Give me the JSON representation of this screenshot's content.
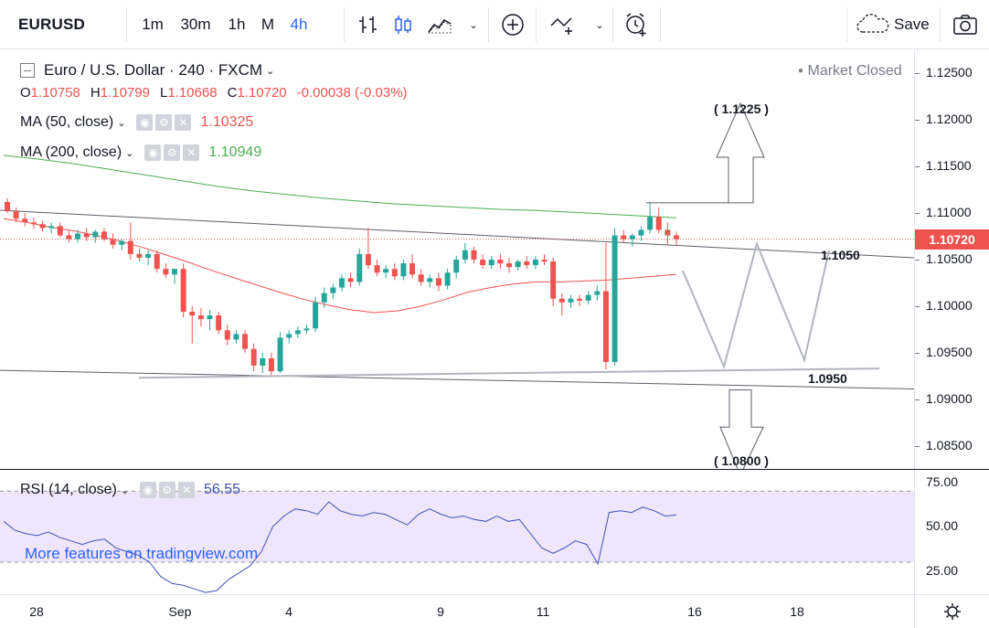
{
  "toolbar": {
    "symbol": "EURUSD",
    "intervals": [
      "1m",
      "30m",
      "1h",
      "M",
      "4h"
    ],
    "active_interval": "4h",
    "save_label": "Save",
    "icons": [
      "bar-style-icon",
      "candle-style-icon",
      "indicators-icon",
      "compare-add-icon",
      "drawing-line-icon",
      "alert-icon",
      "cloud-icon",
      "camera-icon"
    ]
  },
  "legend": {
    "title": "Euro / U.S. Dollar · 240 · FXCM",
    "open_key": "O",
    "open": "1.10758",
    "high_key": "H",
    "high": "1.10799",
    "low_key": "L",
    "low": "1.10668",
    "close_key": "C",
    "close": "1.10720",
    "change": "-0.00038 (-0.03%)",
    "ma50_label": "MA (50, close)",
    "ma50_value": "1.10325",
    "ma200_label": "MA (200, close)",
    "ma200_value": "1.10949",
    "market_status": "Market Closed"
  },
  "price_axis": {
    "labels": [
      "1.12500",
      "1.12000",
      "1.11500",
      "1.11000",
      "1.10500",
      "1.10000",
      "1.09500",
      "1.09000",
      "1.08500"
    ],
    "last_price": "1.10720"
  },
  "rsi": {
    "label": "RSI (14, close)",
    "value": "56.55",
    "axis_labels": [
      "75.00",
      "50.00",
      "25.00"
    ]
  },
  "time_axis": {
    "labels": [
      "28",
      "Sep",
      "4",
      "9",
      "11",
      "16",
      "18"
    ]
  },
  "annotations": {
    "target_up": "( 1.1225 )",
    "resistance": "1.1050",
    "support": "1.0950",
    "target_down": "( 1.0800 )"
  },
  "watermark": "More features on tradingview.com",
  "colors": {
    "bull": "#26a69a",
    "bear": "#ef5350",
    "ma50": "#ef5350",
    "ma200": "#4caf50",
    "rsi_line": "#3f51b5",
    "rsi_band": "#f0e6fb",
    "accent": "#2962ff"
  },
  "chart_data": {
    "type": "candlestick",
    "title": "Euro / U.S. Dollar · 240 · FXCM",
    "ylim": [
      1.0825,
      1.1275
    ],
    "candles": [
      [
        1.1112,
        1.1116,
        1.11,
        1.1102
      ],
      [
        1.1102,
        1.1106,
        1.109,
        1.1094
      ],
      [
        1.1094,
        1.11,
        1.1086,
        1.109
      ],
      [
        1.109,
        1.1095,
        1.1083,
        1.1088
      ],
      [
        1.1088,
        1.1092,
        1.108,
        1.1084
      ],
      [
        1.1084,
        1.109,
        1.1078,
        1.1086
      ],
      [
        1.1086,
        1.109,
        1.1074,
        1.1076
      ],
      [
        1.1076,
        1.1082,
        1.1068,
        1.1072
      ],
      [
        1.1072,
        1.1082,
        1.1068,
        1.1078
      ],
      [
        1.1078,
        1.1084,
        1.107,
        1.1074
      ],
      [
        1.1074,
        1.1082,
        1.1068,
        1.108
      ],
      [
        1.108,
        1.1084,
        1.107,
        1.1072
      ],
      [
        1.1072,
        1.1078,
        1.1062,
        1.1066
      ],
      [
        1.1066,
        1.1072,
        1.106,
        1.107
      ],
      [
        1.107,
        1.109,
        1.105,
        1.1056
      ],
      [
        1.1056,
        1.1062,
        1.1048,
        1.1052
      ],
      [
        1.1052,
        1.106,
        1.1044,
        1.1056
      ],
      [
        1.1056,
        1.106,
        1.1036,
        1.104
      ],
      [
        1.104,
        1.1046,
        1.103,
        1.1034
      ],
      [
        1.1034,
        1.104,
        1.1024,
        1.104
      ],
      [
        1.104,
        1.1046,
        1.0988,
        1.0994
      ],
      [
        1.0994,
        1.1,
        1.096,
        1.099
      ],
      [
        1.099,
        1.0998,
        1.0978,
        1.0986
      ],
      [
        1.0986,
        1.0996,
        1.0974,
        1.099
      ],
      [
        1.099,
        1.0994,
        1.097,
        1.0974
      ],
      [
        1.0974,
        1.098,
        1.0958,
        1.0964
      ],
      [
        1.0964,
        1.0974,
        1.096,
        1.097
      ],
      [
        1.097,
        1.0974,
        1.095,
        1.0954
      ],
      [
        1.0954,
        1.096,
        1.093,
        1.0936
      ],
      [
        1.0936,
        1.095,
        1.0928,
        1.0944
      ],
      [
        1.0944,
        1.095,
        1.0926,
        1.093
      ],
      [
        1.093,
        1.0972,
        1.0928,
        1.0966
      ],
      [
        1.0966,
        1.0974,
        1.096,
        1.097
      ],
      [
        1.097,
        1.0978,
        1.0966,
        1.0974
      ],
      [
        1.0974,
        1.098,
        1.097,
        1.0976
      ],
      [
        1.0976,
        1.101,
        1.0972,
        1.1004
      ],
      [
        1.1004,
        1.102,
        1.0998,
        1.1014
      ],
      [
        1.1014,
        1.1024,
        1.1008,
        1.102
      ],
      [
        1.102,
        1.1034,
        1.1016,
        1.103
      ],
      [
        1.103,
        1.1036,
        1.102,
        1.1026
      ],
      [
        1.1026,
        1.1062,
        1.1022,
        1.1056
      ],
      [
        1.1056,
        1.1084,
        1.104,
        1.1044
      ],
      [
        1.1044,
        1.105,
        1.1032,
        1.1036
      ],
      [
        1.1036,
        1.1044,
        1.103,
        1.104
      ],
      [
        1.104,
        1.1046,
        1.1028,
        1.1032
      ],
      [
        1.1032,
        1.105,
        1.1028,
        1.1046
      ],
      [
        1.1046,
        1.1056,
        1.103,
        1.1034
      ],
      [
        1.1034,
        1.104,
        1.1022,
        1.1026
      ],
      [
        1.1026,
        1.1034,
        1.102,
        1.103
      ],
      [
        1.103,
        1.1036,
        1.1016,
        1.1022
      ],
      [
        1.1022,
        1.104,
        1.1018,
        1.1036
      ],
      [
        1.1036,
        1.1054,
        1.103,
        1.105
      ],
      [
        1.105,
        1.1068,
        1.1046,
        1.106
      ],
      [
        1.106,
        1.1064,
        1.1046,
        1.105
      ],
      [
        1.105,
        1.1056,
        1.104,
        1.1044
      ],
      [
        1.1044,
        1.1054,
        1.104,
        1.105
      ],
      [
        1.105,
        1.1056,
        1.104,
        1.1046
      ],
      [
        1.1046,
        1.1052,
        1.1036,
        1.1042
      ],
      [
        1.1042,
        1.105,
        1.1038,
        1.1048
      ],
      [
        1.1048,
        1.1054,
        1.104,
        1.1044
      ],
      [
        1.1044,
        1.1054,
        1.104,
        1.105
      ],
      [
        1.105,
        1.1056,
        1.1044,
        1.1048
      ],
      [
        1.1048,
        1.1052,
        1.1,
        1.1008
      ],
      [
        1.1008,
        1.1014,
        1.099,
        1.1004
      ],
      [
        1.1004,
        1.1012,
        1.0998,
        1.1008
      ],
      [
        1.1008,
        1.1012,
        1.1,
        1.1006
      ],
      [
        1.1006,
        1.1016,
        1.1002,
        1.1012
      ],
      [
        1.1012,
        1.1022,
        1.1006,
        1.1016
      ],
      [
        1.1016,
        1.1068,
        1.0932,
        1.094
      ],
      [
        1.094,
        1.1084,
        1.0936,
        1.1076
      ],
      [
        1.1076,
        1.1082,
        1.1068,
        1.1072
      ],
      [
        1.1072,
        1.1078,
        1.1064,
        1.1076
      ],
      [
        1.1076,
        1.1086,
        1.107,
        1.1082
      ],
      [
        1.1082,
        1.1112,
        1.1078,
        1.1096
      ],
      [
        1.1096,
        1.1106,
        1.1078,
        1.1082
      ],
      [
        1.1082,
        1.109,
        1.1066,
        1.1076
      ],
      [
        1.1076,
        1.108,
        1.1066,
        1.1072
      ]
    ],
    "ma50": [
      1.1094,
      1.109,
      1.1085,
      1.1081,
      1.1076,
      1.107,
      1.1063,
      1.1055,
      1.1047,
      1.1038,
      1.103,
      1.1022,
      1.1014,
      1.1007,
      1.1001,
      1.0996,
      1.0993,
      1.0995,
      1.1,
      1.1007,
      1.1015,
      1.102,
      1.1024,
      1.1026,
      1.1026,
      1.1027,
      1.1028,
      1.103,
      1.1032,
      1.1034
    ],
    "ma200": [
      1.1162,
      1.1158,
      1.1153,
      1.1147,
      1.1141,
      1.1135,
      1.1129,
      1.1124,
      1.112,
      1.1116,
      1.1113,
      1.111,
      1.1108,
      1.1106,
      1.1104,
      1.1103,
      1.1101,
      1.1099,
      1.1097,
      1.1095
    ],
    "rsi": [
      53,
      48,
      46,
      45,
      47,
      44,
      42,
      40,
      42,
      43,
      38,
      36,
      34,
      30,
      22,
      18,
      17,
      15,
      13,
      14,
      20,
      24,
      28,
      36,
      50,
      56,
      60,
      59,
      57,
      64,
      59,
      57,
      56,
      58,
      57,
      54,
      51,
      57,
      60,
      57,
      55,
      56,
      54,
      53,
      56,
      53,
      54,
      46,
      38,
      35,
      38,
      42,
      40,
      29,
      58,
      59,
      58,
      61,
      59,
      56,
      56.55
    ],
    "rsi_levels": [
      70,
      30
    ],
    "rsi_ylim": [
      12,
      82
    ]
  }
}
